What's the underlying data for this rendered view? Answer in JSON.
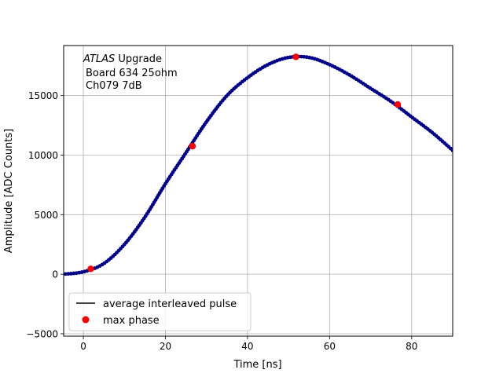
{
  "chart_data": {
    "type": "scatter",
    "title": "",
    "xlabel": "Time [ns]",
    "ylabel": "Amplitude [ADC Counts]",
    "xlim": [
      -4.8,
      90
    ],
    "ylim": [
      -5200,
      19200
    ],
    "grid": true,
    "xticks": [
      0,
      20,
      40,
      60,
      80
    ],
    "yticks": [
      -5000,
      0,
      5000,
      10000,
      15000
    ],
    "annotation": {
      "line1_italic": "ATLAS",
      "line1_rest": " Upgrade",
      "line2": "Board 634 25ohm",
      "line3": "Ch079 7dB"
    },
    "legend": {
      "placement": "lower-left",
      "entries": [
        {
          "label": "average interleaved pulse",
          "marker": "line",
          "color": "#000000"
        },
        {
          "label": "max phase",
          "marker": "circle",
          "color": "#ff0000"
        }
      ]
    },
    "series": [
      {
        "name": "average interleaved pulse",
        "style": "line-with-dots",
        "line_color": "#000000",
        "marker_color": "#00008b",
        "x": [
          -5,
          0,
          5,
          10,
          15,
          20,
          25,
          30,
          35,
          40,
          45,
          50,
          55,
          60,
          65,
          70,
          75,
          80,
          85,
          90
        ],
        "y": [
          0,
          200,
          900,
          2500,
          4800,
          7600,
          10200,
          12800,
          15000,
          16500,
          17600,
          18200,
          18200,
          17600,
          16700,
          15600,
          14500,
          13200,
          11900,
          10400
        ]
      },
      {
        "name": "max phase",
        "style": "markers",
        "marker_color": "#ff0000",
        "x": [
          1.8,
          26.6,
          51.8,
          76.6
        ],
        "y": [
          450,
          10750,
          18250,
          14250
        ]
      }
    ]
  }
}
